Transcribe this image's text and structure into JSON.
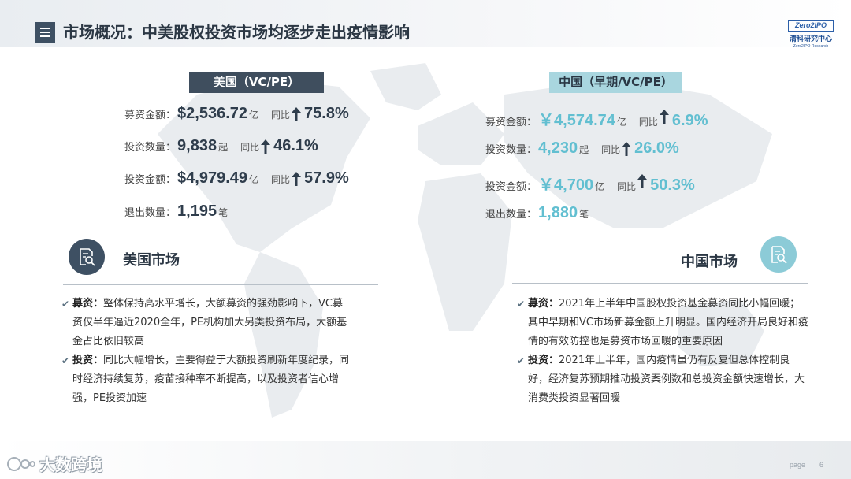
{
  "title": "市场概况：中美股权投资市场均逐步走出疫情影响",
  "logo": {
    "brand": "Zero2IPO",
    "cn": "清科研究中心",
    "en": "Zero2IPO Research"
  },
  "us": {
    "tag": "美国（VC/PE）",
    "metrics": [
      {
        "label": "募资金额：",
        "value": "$2,536.72",
        "unit": "亿",
        "yoy_label": "同比",
        "pct": "75.8%"
      },
      {
        "label": "投资数量：",
        "value": "9,838",
        "unit": "起",
        "yoy_label": "同比",
        "pct": "46.1%"
      },
      {
        "label": "投资金额：",
        "value": "$4,979.49",
        "unit": "亿",
        "yoy_label": "同比",
        "pct": "57.9%"
      },
      {
        "label": "退出数量：",
        "value": "1,195",
        "unit": "笔"
      }
    ],
    "market_title": "美国市场",
    "bullets": [
      {
        "head": "募资：",
        "text": "整体保持高水平增长，大额募资的强劲影响下，VC募资仅半年逼近2020全年，PE机构加大另类投资布局，大额基金占比依旧较高"
      },
      {
        "head": "投资：",
        "text": "同比大幅增长，主要得益于大额投资刷新年度纪录，同时经济持续复苏，疫苗接种率不断提高，以及投资者信心增强，PE投资加速"
      }
    ]
  },
  "cn": {
    "tag": "中国（早期/VC/PE）",
    "metrics": [
      {
        "label": "募资金额：",
        "value": "￥4,574.74",
        "unit": "亿",
        "yoy_label": "同比",
        "pct": "6.9%"
      },
      {
        "label": "投资数量：",
        "value": "4,230",
        "unit": "起",
        "yoy_label": "同比",
        "pct": "26.0%"
      },
      {
        "label": "投资金额：",
        "value": "￥4,700",
        "unit": "亿",
        "yoy_label": "同比",
        "pct": "50.3%"
      },
      {
        "label": "退出数量：",
        "value": "1,880",
        "unit": "笔"
      }
    ],
    "market_title": "中国市场",
    "bullets": [
      {
        "head": "募资：",
        "text": "2021年上半年中国股权投资基金募资同比小幅回暖；其中早期和VC市场新募金额上升明显。国内经济开局良好和疫情的有效防控也是募资市场回暖的重要原因"
      },
      {
        "head": "投资：",
        "text": "2021年上半年，国内疫情虽仍有反复但总体控制良好，经济复苏预期推动投资案例数和总投资金额快速增长，大消费类投资显著回暖"
      }
    ]
  },
  "footer": {
    "watermark": "大数跨境",
    "page_label": "page",
    "page_number": "6"
  },
  "colors": {
    "us_accent": "#3f4e5e",
    "cn_accent": "#62bfd1",
    "cn_tag": "#a9d6df"
  },
  "icons": {
    "title": "list-icon",
    "market": "document-search-icon",
    "trend": "arrow-up-icon",
    "bullet": "check-icon"
  }
}
